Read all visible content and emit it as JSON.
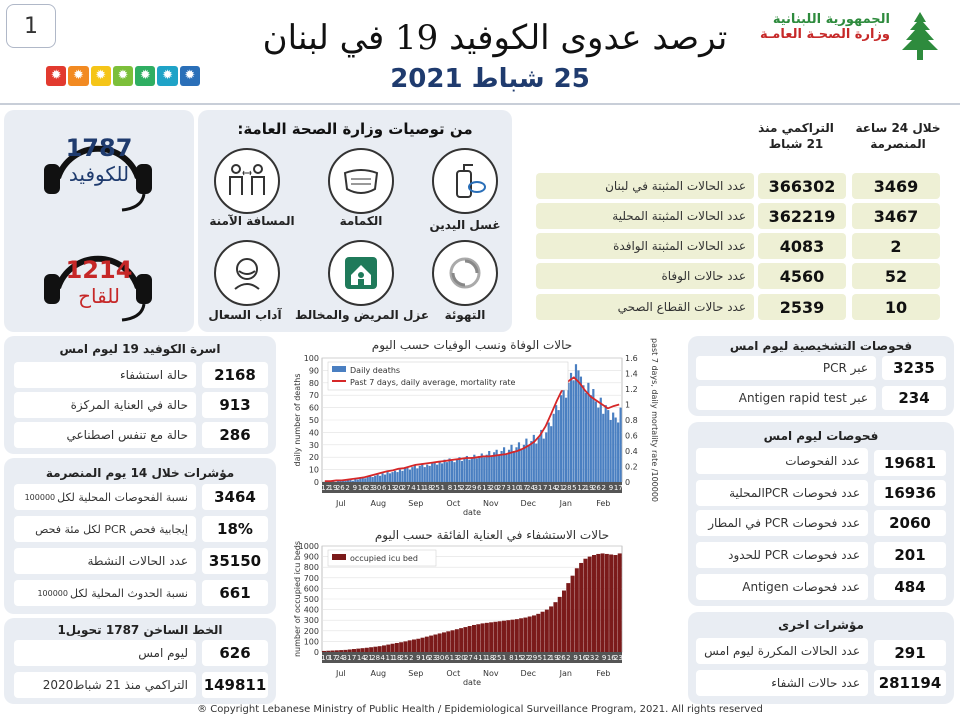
{
  "header": {
    "title": "ترصد عدوى الكوفيد 19 في لبنان",
    "date": "25 شباط 2021",
    "ministry_line1": "الجمهورية اللبنانية",
    "ministry_line2": "وزارة الصحـة العامـة",
    "page_number": "1"
  },
  "hotlines": {
    "covid_number": "1787",
    "covid_label": "للكوفيد",
    "vaccine_number": "1214",
    "vaccine_label": "للقاح"
  },
  "recommendations": {
    "title": "من توصيات وزارة الصحة العامة:",
    "items": [
      {
        "label": "غسل اليدين",
        "icon": "handwash-icon"
      },
      {
        "label": "الكمامة",
        "icon": "mask-icon"
      },
      {
        "label": "المسافة الآمنة",
        "icon": "distance-icon"
      },
      {
        "label": "التهوئة",
        "icon": "ventilation-icon"
      },
      {
        "label": "عزل المريض والمخالط",
        "icon": "home-isolation-icon"
      },
      {
        "label": "آداب السعال",
        "icon": "cough-icon"
      }
    ]
  },
  "summary": {
    "col_24h": "خلال 24 ساعة المنصرمة",
    "col_cum": "التراكمي منذ 21 شباط",
    "rows": [
      {
        "label": "عدد الحالات المثبتة في لبنان",
        "cum": "366302",
        "day": "3469"
      },
      {
        "label": "عدد الحالات المثبتة المحلية",
        "cum": "362219",
        "day": "3467"
      },
      {
        "label": "عدد الحالات المثبتة الوافدة",
        "cum": "4083",
        "day": "2"
      },
      {
        "label": "عدد حالات الوفاة",
        "cum": "4560",
        "day": "52"
      },
      {
        "label": "عدد حالات القطاع الصحي",
        "cum": "2539",
        "day": "10"
      }
    ]
  },
  "beds": {
    "title": "اسرة الكوفيد 19 ليوم امس",
    "rows": [
      {
        "label": "حالة استشفاء",
        "value": "2168"
      },
      {
        "label": "حالة في العناية المركزة",
        "value": "913"
      },
      {
        "label": "حالة مع تنفس اصطناعي",
        "value": "286"
      }
    ]
  },
  "indicators14": {
    "title": "مؤشرات خلال 14 يوم المنصرمة",
    "rows": [
      {
        "label": "نسبة الفحوصات المحلية لكل",
        "small": "100000",
        "value": "3464"
      },
      {
        "label": "إيجابية فحص PCR لكل مئة فحص",
        "small": "",
        "value": "18%"
      },
      {
        "label": "عدد الحالات النشطة",
        "small": "",
        "value": "35150"
      },
      {
        "label": "نسبة الحدوث المحلية لكل",
        "small": "100000",
        "value": "661"
      }
    ]
  },
  "hotline_stats": {
    "title": "الخط الساخن 1787 تحويل1",
    "rows": [
      {
        "label": "ليوم امس",
        "value": "626"
      },
      {
        "label": "التراكمي منذ 21 شباط2020",
        "value": "149811"
      }
    ]
  },
  "diag_tests": {
    "title": "فحوصات التشخيصية ليوم امس",
    "rows": [
      {
        "label": "عبر PCR",
        "value": "3235"
      },
      {
        "label": "عبر Antigen rapid test",
        "value": "234"
      }
    ]
  },
  "tests_yesterday": {
    "title": "فحوصات ليوم امس",
    "rows": [
      {
        "label": "عدد الفحوصات",
        "value": "19681"
      },
      {
        "label": "عدد فحوصات PCRالمحلية",
        "value": "16936"
      },
      {
        "label": "عدد فحوصات PCR في المطار",
        "value": "2060"
      },
      {
        "label": "عدد فحوصات PCR للحدود",
        "value": "201"
      },
      {
        "label": "عدد فحوصات Antigen",
        "value": "484"
      }
    ]
  },
  "other_indicators": {
    "title": "مؤشرات اخرى",
    "rows": [
      {
        "label": "عدد الحالات المكررة ليوم امس",
        "value": "291"
      },
      {
        "label": "عدد حالات الشفاء",
        "value": "281194"
      }
    ]
  },
  "footer": {
    "copyright": "® Copyright Lebanese Ministry of Public Health / Epidemiological Surveillance Program, 2021. All rights reserved"
  },
  "colors": {
    "navy": "#1f3b6e",
    "deaths_bar": "#4a7fc1",
    "avg_line": "#d62728",
    "icu_bar": "#7b1a1a",
    "cell_bg": "#eef0d5",
    "panel_bg": "#e9edf3",
    "cedar_green": "#2e8b3d",
    "ministry_red": "#c62828"
  },
  "chart_data": [
    {
      "type": "bar",
      "title": "حالات الوفاة ونسب الوفيات حسب اليوم",
      "xlabel": "date",
      "ylabel": "daily number of deaths",
      "y2label": "past 7 days, daily mortality rate /100000",
      "ylim": [
        0,
        100
      ],
      "y2lim": [
        0,
        1.6
      ],
      "yticks": [
        0,
        10,
        20,
        30,
        40,
        50,
        60,
        70,
        80,
        90,
        100
      ],
      "y2ticks": [
        0,
        0.2,
        0.4,
        0.6,
        0.8,
        1,
        1.2,
        1.4,
        1.6
      ],
      "legend": [
        "Daily deaths",
        "Past 7 days, daily average, mortality rate"
      ],
      "legend_position": "top-left",
      "months": [
        "Jul",
        "Aug",
        "Sep",
        "Oct",
        "Nov",
        "Dec",
        "Jan",
        "Feb"
      ],
      "day_ticks": [
        "12",
        "19",
        "26",
        "2",
        "9",
        "16",
        "23",
        "30",
        "6",
        "13",
        "20",
        "27",
        "4",
        "11",
        "18",
        "25",
        "1",
        "8",
        "15",
        "22",
        "29",
        "6",
        "13",
        "20",
        "27",
        "3",
        "10",
        "17",
        "24",
        "31",
        "7",
        "14",
        "21",
        "28",
        "5",
        "12",
        "19",
        "26",
        "2",
        "9",
        "17"
      ],
      "series": [
        {
          "name": "Daily deaths",
          "values": [
            0,
            0,
            1,
            0,
            1,
            0,
            1,
            2,
            1,
            1,
            2,
            2,
            1,
            3,
            2,
            3,
            4,
            3,
            4,
            5,
            4,
            5,
            6,
            5,
            7,
            6,
            8,
            7,
            8,
            9,
            8,
            10,
            9,
            11,
            12,
            10,
            12,
            14,
            11,
            13,
            15,
            12,
            14,
            13,
            15,
            16,
            14,
            17,
            15,
            18,
            16,
            19,
            17,
            16,
            18,
            20,
            17,
            19,
            21,
            18,
            20,
            22,
            19,
            21,
            23,
            20,
            22,
            25,
            21,
            24,
            26,
            22,
            25,
            28,
            23,
            26,
            30,
            25,
            28,
            32,
            27,
            30,
            35,
            29,
            33,
            38,
            31,
            36,
            42,
            35,
            40,
            48,
            45,
            55,
            62,
            58,
            70,
            75,
            68,
            80,
            88,
            82,
            95,
            90,
            85,
            78,
            72,
            80,
            70,
            75,
            65,
            60,
            68,
            55,
            62,
            58,
            50,
            56,
            52,
            48,
            60
          ]
        },
        {
          "name": "Past 7 days, daily average, mortality rate",
          "values": [
            0.01,
            0.01,
            0.02,
            0.02,
            0.03,
            0.04,
            0.05,
            0.06,
            0.08,
            0.1,
            0.12,
            0.14,
            0.15,
            0.17,
            0.18,
            0.2,
            0.22,
            0.23,
            0.24,
            0.25,
            0.26,
            0.27,
            0.28,
            0.29,
            0.3,
            0.31,
            0.31,
            0.32,
            0.33,
            0.33,
            0.34,
            0.35,
            0.36,
            0.38,
            0.4,
            0.43,
            0.47,
            0.52,
            0.6,
            0.72,
            0.88,
            1.05,
            1.2,
            1.3,
            1.35,
            1.28,
            1.18,
            1.1,
            1.05,
            1.0,
            0.95,
            0.98,
            1.0
          ]
        }
      ]
    },
    {
      "type": "bar",
      "title": "حالات الاستشفاء في العناية الفائقة حسب اليوم",
      "xlabel": "date",
      "ylabel": "number of occupied icu beds",
      "ylim": [
        0,
        1000
      ],
      "yticks": [
        0,
        100,
        200,
        300,
        400,
        500,
        600,
        700,
        800,
        900,
        1000
      ],
      "legend": [
        "occupied icu bed"
      ],
      "legend_position": "top-left",
      "months": [
        "Jul",
        "Aug",
        "Sep",
        "Oct",
        "Nov",
        "Dec",
        "Jan",
        "Feb"
      ],
      "day_ticks": [
        "10",
        "17",
        "24",
        "31",
        "7",
        "14",
        "21",
        "28",
        "4",
        "11",
        "18",
        "25",
        "2",
        "9",
        "16",
        "23",
        "30",
        "6",
        "13",
        "20",
        "27",
        "4",
        "11",
        "18",
        "25",
        "1",
        "8",
        "15",
        "22",
        "29",
        "5",
        "12",
        "19",
        "26",
        "2",
        "9",
        "16",
        "23",
        "2",
        "9",
        "16",
        "23"
      ],
      "series": [
        {
          "name": "occupied icu bed",
          "values": [
            10,
            12,
            14,
            16,
            18,
            20,
            24,
            28,
            32,
            36,
            40,
            45,
            50,
            55,
            62,
            70,
            78,
            85,
            92,
            100,
            110,
            118,
            125,
            135,
            145,
            155,
            165,
            175,
            185,
            195,
            205,
            215,
            225,
            235,
            245,
            255,
            262,
            270,
            275,
            280,
            285,
            290,
            295,
            300,
            305,
            310,
            318,
            325,
            335,
            345,
            360,
            380,
            400,
            430,
            470,
            520,
            580,
            650,
            720,
            790,
            840,
            880,
            900,
            915,
            925,
            930,
            925,
            920,
            915,
            930
          ]
        }
      ]
    }
  ]
}
